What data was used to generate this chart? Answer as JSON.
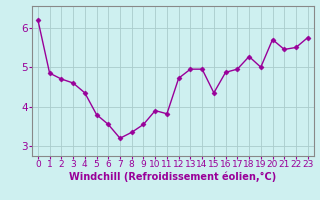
{
  "x": [
    0,
    1,
    2,
    3,
    4,
    5,
    6,
    7,
    8,
    9,
    10,
    11,
    12,
    13,
    14,
    15,
    16,
    17,
    18,
    19,
    20,
    21,
    22,
    23
  ],
  "y": [
    6.2,
    4.85,
    4.7,
    4.6,
    4.35,
    3.8,
    3.55,
    3.2,
    3.35,
    3.55,
    3.9,
    3.82,
    4.72,
    4.95,
    4.95,
    4.35,
    4.87,
    4.95,
    5.27,
    5.0,
    5.7,
    5.45,
    5.5,
    5.75
  ],
  "line_color": "#990099",
  "marker": "D",
  "markersize": 2.5,
  "linewidth": 1.0,
  "background_color": "#cef0f0",
  "grid_color": "#aacccc",
  "xlabel": "Windchill (Refroidissement éolien,°C)",
  "xlabel_color": "#990099",
  "xlabel_fontsize": 7,
  "tick_color": "#990099",
  "tick_fontsize": 6.5,
  "ytick_fontsize": 7.5,
  "ylim": [
    2.75,
    6.55
  ],
  "yticks": [
    3,
    4,
    5,
    6
  ],
  "xtick_labels": [
    "0",
    "1",
    "2",
    "3",
    "4",
    "5",
    "6",
    "7",
    "8",
    "9",
    "10",
    "11",
    "12",
    "13",
    "14",
    "15",
    "16",
    "17",
    "18",
    "19",
    "20",
    "21",
    "22",
    "23"
  ]
}
